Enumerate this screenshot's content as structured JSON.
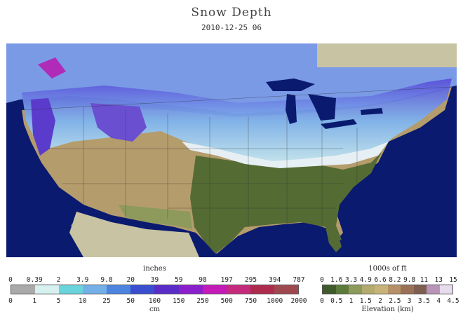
{
  "header": {
    "title": "Snow Depth",
    "datetime": "2010-12-25 06"
  },
  "snow_legend": {
    "top_unit": "inches",
    "bottom_unit": "cm",
    "top_ticks": [
      "0",
      "0.39",
      "2",
      "3.9",
      "9.8",
      "20",
      "39",
      "59",
      "98",
      "197",
      "295",
      "394",
      "787"
    ],
    "bottom_ticks": [
      "0",
      "1",
      "5",
      "10",
      "25",
      "50",
      "100",
      "150",
      "250",
      "500",
      "750",
      "1000",
      "2000"
    ],
    "colors": [
      "#aaaaaa",
      "#d7f0f0",
      "#6ad4dc",
      "#74b0e8",
      "#4c84e0",
      "#3a4fd0",
      "#5a2cc8",
      "#8a1fcc",
      "#c41bb8",
      "#c42b7c",
      "#ad2c4e",
      "#9e4850"
    ]
  },
  "elevation_legend": {
    "top_unit": "1000s of ft",
    "bottom_unit": "Elevation (km)",
    "top_ticks": [
      "0",
      "1.6",
      "3.3",
      "4.9",
      "6.6",
      "8.2",
      "9.8",
      "11",
      "13",
      "15"
    ],
    "bottom_ticks": [
      "0",
      "0.5",
      "1",
      "1.5",
      "2",
      "2.5",
      "3",
      "3.5",
      "4",
      "4.5"
    ],
    "colors": [
      "#3f5a2b",
      "#5c7a3c",
      "#8e9a5c",
      "#b3aa6e",
      "#c8b478",
      "#b69066",
      "#9a7056",
      "#7e5e50",
      "#b894b8",
      "#e6dcec"
    ]
  }
}
